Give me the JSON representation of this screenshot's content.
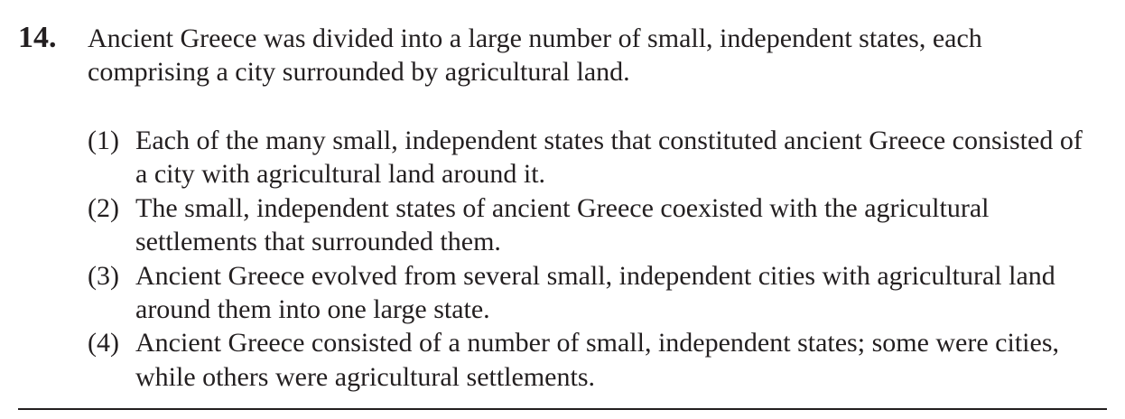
{
  "question": {
    "number": "14.",
    "stem": "Ancient Greece was divided into a large number of small, independent states, each comprising a city surrounded by agricultural land.",
    "options": [
      {
        "num": "(1)",
        "text": "Each of the many small, independent states that constituted ancient Greece consisted of a city with agricultural land around it."
      },
      {
        "num": "(2)",
        "text": "The small, independent states of ancient Greece coexisted with the agricultural settlements that surrounded them."
      },
      {
        "num": "(3)",
        "text": "Ancient Greece evolved from several small, independent cities with agricultural land around them into one large state."
      },
      {
        "num": "(4)",
        "text": "Ancient Greece consisted of a number of small, independent states; some were cities, while others were agricultural settlements."
      }
    ]
  }
}
